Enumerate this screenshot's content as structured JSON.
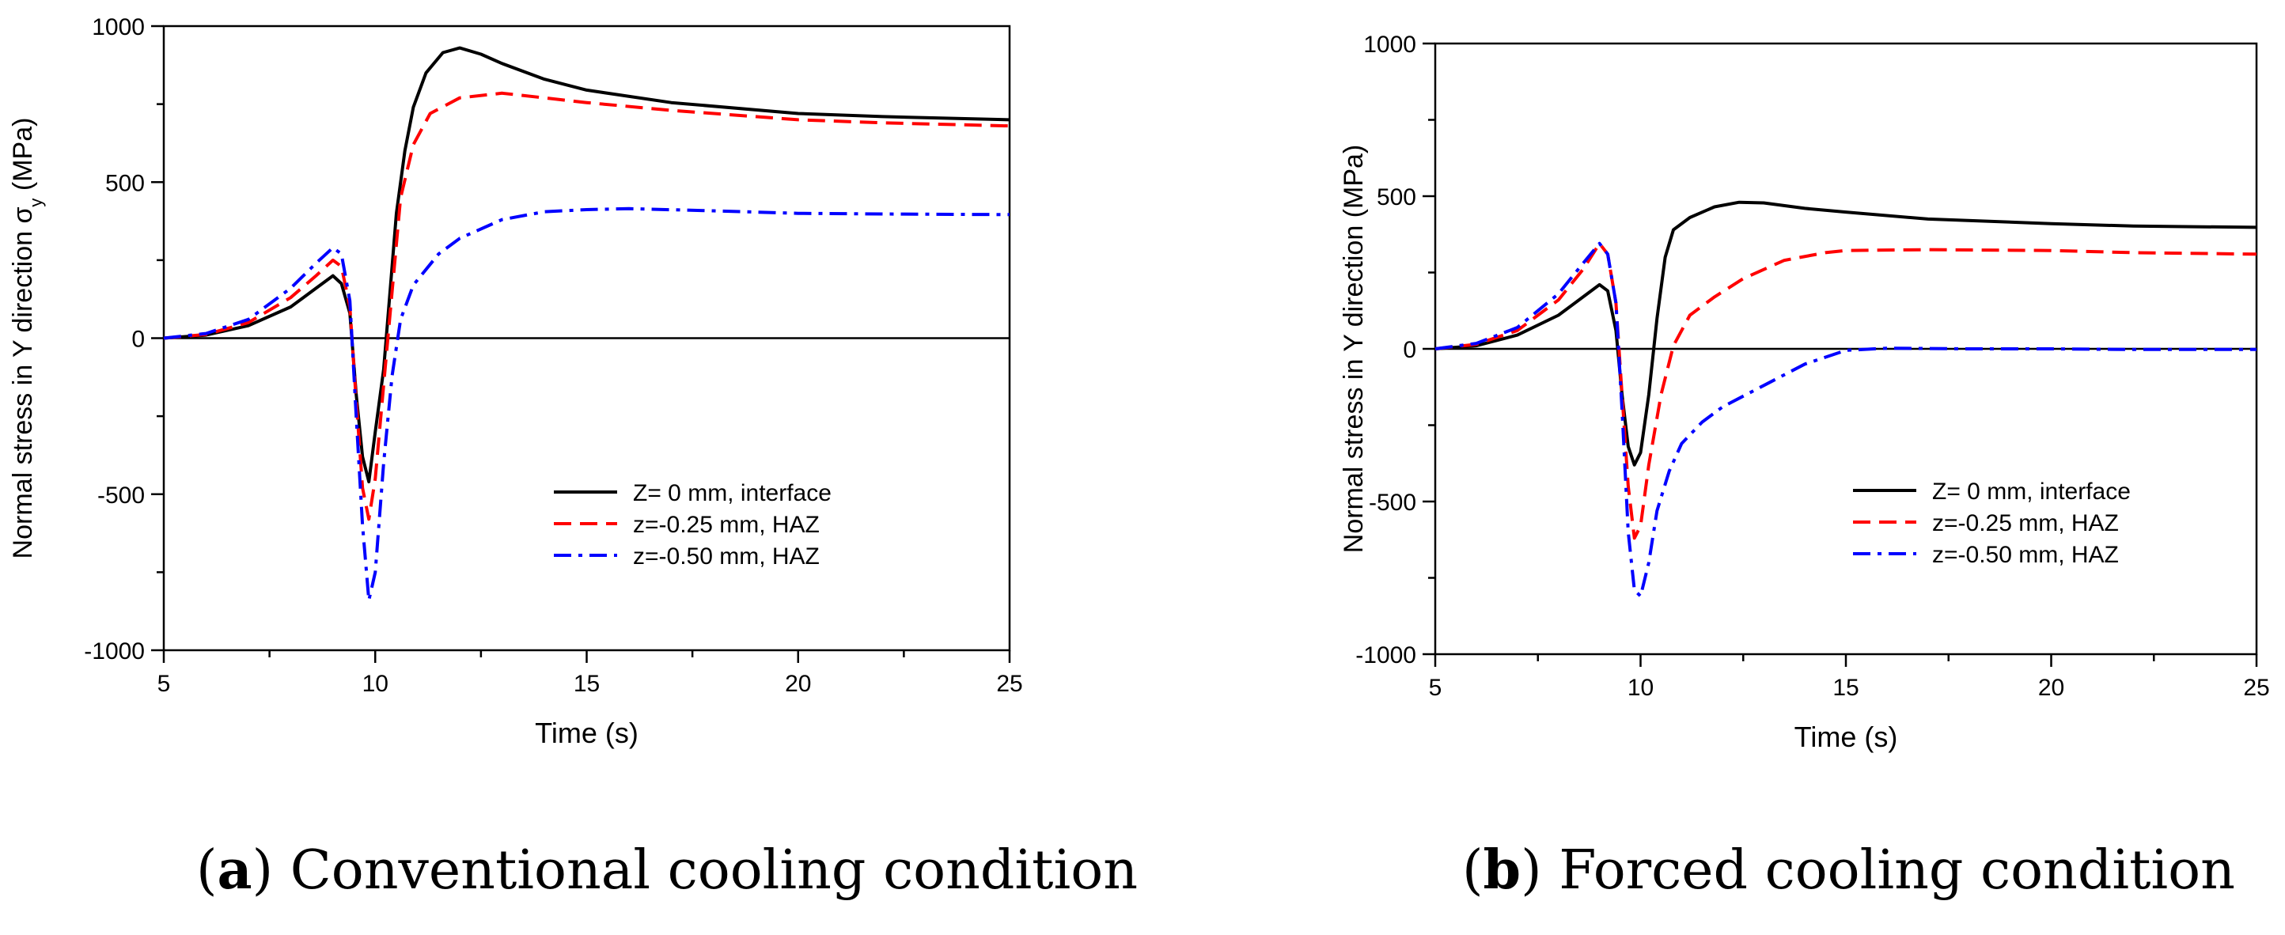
{
  "chart_data": [
    {
      "type": "line",
      "panel_letter": "a",
      "caption": "Conventional cooling condition",
      "xlabel": "Time (s)",
      "ylabel": "Normal stress in Y direction σ",
      "ylabel_subscript": "y",
      "ylabel_unit": " (MPa)",
      "xlim": [
        5,
        25
      ],
      "ylim": [
        -1000,
        1000
      ],
      "xticks": [
        5,
        10,
        15,
        20,
        25
      ],
      "yticks": [
        -1000,
        -500,
        0,
        500,
        1000
      ],
      "zero_line": true,
      "grid": false,
      "legend_position": "lower-right",
      "series": [
        {
          "name": "Z= 0 mm, interface",
          "color": "#000000",
          "dash": "solid",
          "points": [
            [
              5,
              0
            ],
            [
              6,
              10
            ],
            [
              7,
              40
            ],
            [
              8,
              100
            ],
            [
              8.6,
              160
            ],
            [
              9.0,
              200
            ],
            [
              9.2,
              175
            ],
            [
              9.4,
              80
            ],
            [
              9.55,
              -180
            ],
            [
              9.7,
              -380
            ],
            [
              9.85,
              -460
            ],
            [
              10.0,
              -300
            ],
            [
              10.2,
              -100
            ],
            [
              10.35,
              150
            ],
            [
              10.5,
              400
            ],
            [
              10.7,
              600
            ],
            [
              10.9,
              740
            ],
            [
              11.2,
              850
            ],
            [
              11.6,
              915
            ],
            [
              12.0,
              930
            ],
            [
              12.5,
              910
            ],
            [
              13,
              880
            ],
            [
              14,
              830
            ],
            [
              15,
              795
            ],
            [
              17,
              755
            ],
            [
              20,
              720
            ],
            [
              22,
              710
            ],
            [
              25,
              700
            ]
          ]
        },
        {
          "name": "z=-0.25 mm, HAZ",
          "color": "#ff0000",
          "dash": "dashed",
          "points": [
            [
              5,
              0
            ],
            [
              6,
              12
            ],
            [
              7,
              50
            ],
            [
              8,
              130
            ],
            [
              8.6,
              200
            ],
            [
              9.0,
              250
            ],
            [
              9.2,
              230
            ],
            [
              9.4,
              100
            ],
            [
              9.55,
              -200
            ],
            [
              9.7,
              -480
            ],
            [
              9.85,
              -580
            ],
            [
              10.0,
              -450
            ],
            [
              10.2,
              -150
            ],
            [
              10.4,
              150
            ],
            [
              10.6,
              450
            ],
            [
              10.9,
              620
            ],
            [
              11.3,
              720
            ],
            [
              12,
              770
            ],
            [
              13,
              785
            ],
            [
              14,
              770
            ],
            [
              15,
              755
            ],
            [
              17,
              730
            ],
            [
              20,
              700
            ],
            [
              22,
              690
            ],
            [
              25,
              680
            ]
          ]
        },
        {
          "name": "z=-0.50 mm, HAZ",
          "color": "#0000ff",
          "dash": "dashdot",
          "points": [
            [
              5,
              0
            ],
            [
              6,
              15
            ],
            [
              7,
              60
            ],
            [
              8,
              160
            ],
            [
              8.6,
              240
            ],
            [
              9.0,
              290
            ],
            [
              9.2,
              270
            ],
            [
              9.4,
              120
            ],
            [
              9.55,
              -250
            ],
            [
              9.7,
              -600
            ],
            [
              9.85,
              -840
            ],
            [
              10.0,
              -750
            ],
            [
              10.2,
              -400
            ],
            [
              10.4,
              -120
            ],
            [
              10.6,
              60
            ],
            [
              10.9,
              170
            ],
            [
              11.5,
              270
            ],
            [
              12,
              320
            ],
            [
              13,
              380
            ],
            [
              14,
              405
            ],
            [
              15,
              412
            ],
            [
              16,
              415
            ],
            [
              18,
              408
            ],
            [
              20,
              400
            ],
            [
              22,
              398
            ],
            [
              25,
              396
            ]
          ]
        }
      ]
    },
    {
      "type": "line",
      "panel_letter": "b",
      "caption": "Forced cooling condition",
      "xlabel": "Time (s)",
      "ylabel": "Normal stress in Y direction (MPa)",
      "xlim": [
        5,
        25
      ],
      "ylim": [
        -1000,
        1000
      ],
      "xticks": [
        5,
        10,
        15,
        20,
        25
      ],
      "yticks": [
        -1000,
        -500,
        0,
        500,
        1000
      ],
      "zero_line": true,
      "grid": false,
      "legend_position": "lower-right",
      "series": [
        {
          "name": "Z= 0 mm, interface",
          "color": "#000000",
          "dash": "solid",
          "points": [
            [
              5,
              0
            ],
            [
              6,
              10
            ],
            [
              7,
              45
            ],
            [
              8,
              110
            ],
            [
              8.6,
              170
            ],
            [
              9.0,
              210
            ],
            [
              9.2,
              190
            ],
            [
              9.4,
              60
            ],
            [
              9.55,
              -150
            ],
            [
              9.7,
              -320
            ],
            [
              9.85,
              -380
            ],
            [
              10.0,
              -340
            ],
            [
              10.2,
              -150
            ],
            [
              10.4,
              100
            ],
            [
              10.6,
              300
            ],
            [
              10.8,
              390
            ],
            [
              11.2,
              430
            ],
            [
              11.8,
              465
            ],
            [
              12.4,
              480
            ],
            [
              13,
              478
            ],
            [
              14,
              460
            ],
            [
              15,
              448
            ],
            [
              17,
              425
            ],
            [
              20,
              410
            ],
            [
              22,
              402
            ],
            [
              25,
              398
            ]
          ]
        },
        {
          "name": "z=-0.25 mm, HAZ",
          "color": "#ff0000",
          "dash": "dashed",
          "points": [
            [
              5,
              0
            ],
            [
              6,
              15
            ],
            [
              7,
              60
            ],
            [
              8,
              160
            ],
            [
              8.6,
              260
            ],
            [
              9.0,
              345
            ],
            [
              9.2,
              310
            ],
            [
              9.4,
              150
            ],
            [
              9.55,
              -150
            ],
            [
              9.7,
              -450
            ],
            [
              9.85,
              -620
            ],
            [
              10.0,
              -580
            ],
            [
              10.2,
              -380
            ],
            [
              10.5,
              -150
            ],
            [
              10.8,
              10
            ],
            [
              11.2,
              110
            ],
            [
              11.8,
              170
            ],
            [
              12.5,
              230
            ],
            [
              13.5,
              290
            ],
            [
              14.5,
              315
            ],
            [
              15,
              322
            ],
            [
              17,
              325
            ],
            [
              20,
              322
            ],
            [
              22,
              315
            ],
            [
              25,
              310
            ]
          ]
        },
        {
          "name": "z=-0.50 mm, HAZ",
          "color": "#0000ff",
          "dash": "dashdot",
          "points": [
            [
              5,
              0
            ],
            [
              6,
              18
            ],
            [
              7,
              70
            ],
            [
              8,
              180
            ],
            [
              8.6,
              280
            ],
            [
              9.0,
              345
            ],
            [
              9.2,
              310
            ],
            [
              9.4,
              150
            ],
            [
              9.55,
              -200
            ],
            [
              9.7,
              -600
            ],
            [
              9.85,
              -790
            ],
            [
              10.0,
              -810
            ],
            [
              10.2,
              -700
            ],
            [
              10.4,
              -530
            ],
            [
              10.7,
              -400
            ],
            [
              11,
              -310
            ],
            [
              11.5,
              -240
            ],
            [
              12,
              -190
            ],
            [
              13,
              -120
            ],
            [
              14,
              -50
            ],
            [
              15,
              -5
            ],
            [
              16,
              2
            ],
            [
              18,
              0
            ],
            [
              20,
              0
            ],
            [
              22,
              -2
            ],
            [
              25,
              -2
            ]
          ]
        }
      ]
    }
  ]
}
